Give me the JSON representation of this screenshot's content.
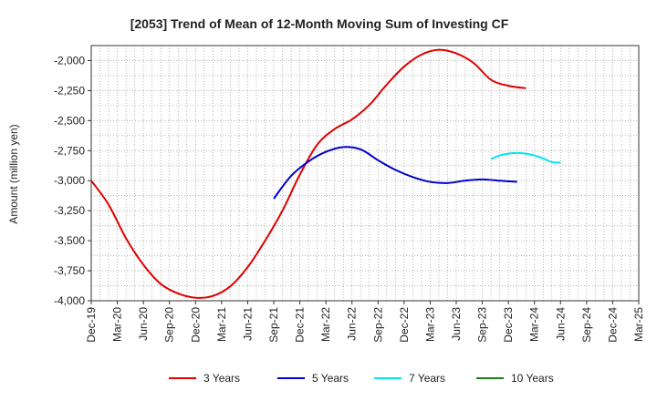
{
  "chart_data": {
    "type": "line",
    "title": "[2053]  Trend of Mean of 12-Month Moving Sum of Investing CF",
    "xlabel": "",
    "ylabel": "Amount (million yen)",
    "ylim": [
      -4000,
      -1875
    ],
    "yticks": [
      -2000,
      -2250,
      -2500,
      -2750,
      -3000,
      -3250,
      -3500,
      -3750,
      -4000
    ],
    "ytick_labels": [
      "-2,000",
      "-2,250",
      "-2,500",
      "-2,750",
      "-3,000",
      "-3,250",
      "-3,500",
      "-3,750",
      "-4,000"
    ],
    "x_start": "Dec-19",
    "x_months": 63,
    "xtick_labels": [
      "Dec-19",
      "Mar-20",
      "Jun-20",
      "Sep-20",
      "Dec-20",
      "Mar-21",
      "Jun-21",
      "Sep-21",
      "Dec-21",
      "Mar-22",
      "Jun-22",
      "Sep-22",
      "Dec-22",
      "Mar-23",
      "Jun-23",
      "Sep-23",
      "Dec-23",
      "Mar-24",
      "Jun-24",
      "Sep-24",
      "Dec-24",
      "Mar-25"
    ],
    "grid": true,
    "legend_position": "bottom",
    "series": [
      {
        "name": "3 Years",
        "color": "#e00000",
        "x": [
          0,
          2,
          4,
          6,
          8,
          10,
          12,
          14,
          16,
          18,
          20,
          22,
          24,
          26,
          28,
          30,
          32,
          34,
          36,
          38,
          40,
          42,
          44,
          46,
          48,
          50
        ],
        "values": [
          -3000,
          -3200,
          -3480,
          -3700,
          -3860,
          -3940,
          -3975,
          -3960,
          -3880,
          -3720,
          -3500,
          -3250,
          -2950,
          -2700,
          -2570,
          -2490,
          -2370,
          -2200,
          -2050,
          -1950,
          -1910,
          -1940,
          -2020,
          -2160,
          -2210,
          -2230
        ]
      },
      {
        "name": "5 Years",
        "color": "#0000cc",
        "x": [
          21,
          23,
          25,
          27,
          29,
          31,
          33,
          35,
          37,
          39,
          41,
          43,
          45,
          47,
          49
        ],
        "values": [
          -3150,
          -2960,
          -2840,
          -2760,
          -2720,
          -2740,
          -2830,
          -2910,
          -2970,
          -3010,
          -3020,
          -3000,
          -2990,
          -3000,
          -3010
        ]
      },
      {
        "name": "7 Years",
        "color": "#00e5ee",
        "x": [
          46,
          47,
          48,
          49,
          50,
          51,
          52,
          53,
          54
        ],
        "values": [
          -2820,
          -2790,
          -2775,
          -2770,
          -2775,
          -2790,
          -2815,
          -2845,
          -2850
        ]
      },
      {
        "name": "10 Years",
        "color": "#1a7f1a",
        "x": [],
        "values": []
      }
    ]
  }
}
